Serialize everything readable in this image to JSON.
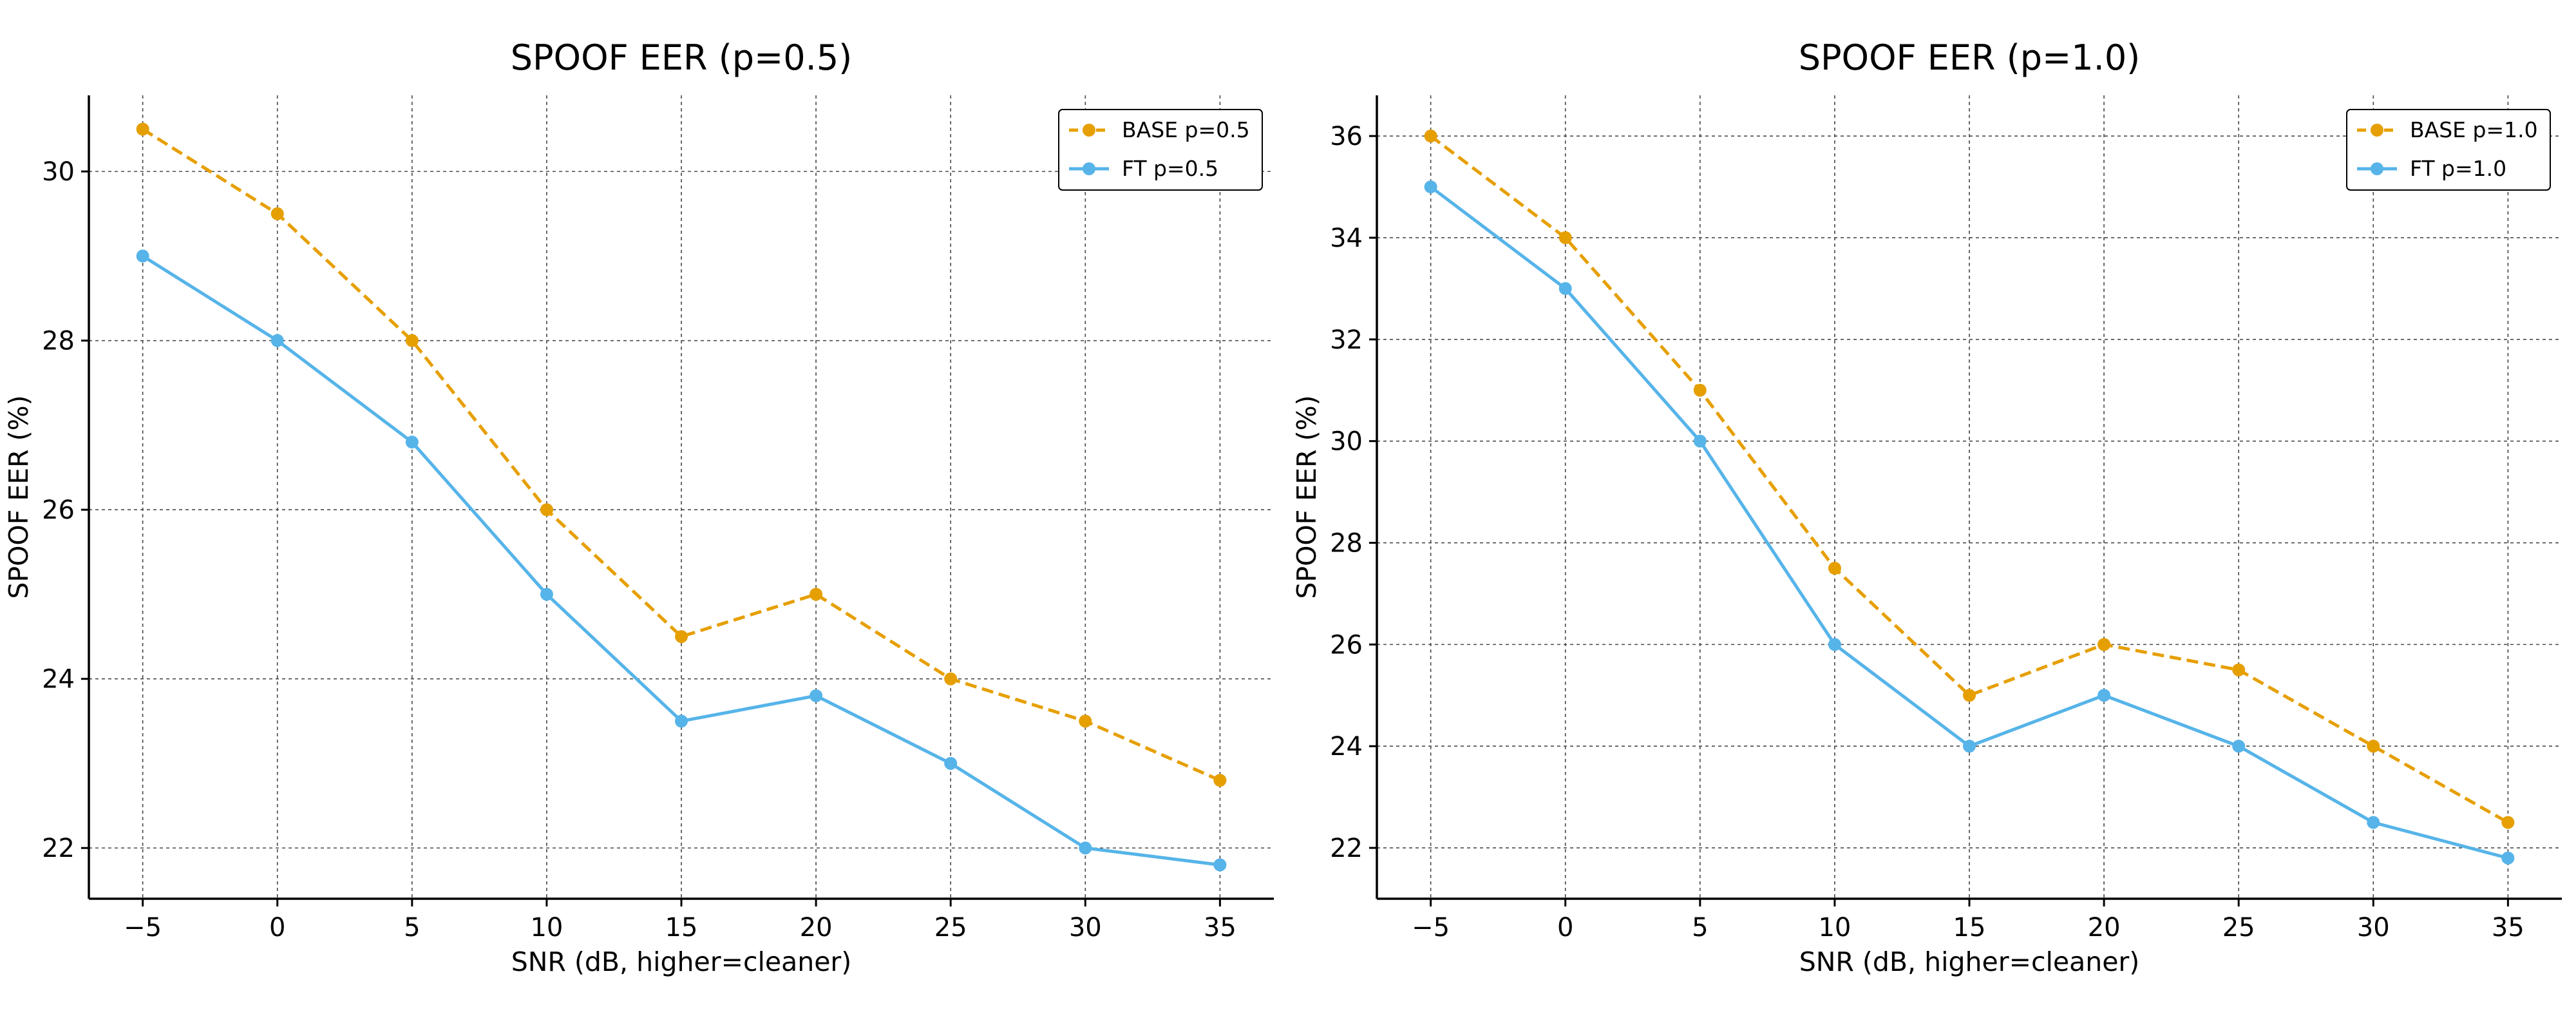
{
  "chart_data": [
    {
      "type": "line",
      "title": "SPOOF EER (p=0.5)",
      "xlabel": "SNR (dB, higher=cleaner)",
      "ylabel": "SPOOF EER (%)",
      "x": [
        -5,
        0,
        5,
        10,
        15,
        20,
        25,
        30,
        35
      ],
      "x_tick_labels": [
        "−5",
        "0",
        "5",
        "10",
        "15",
        "20",
        "25",
        "30",
        "35"
      ],
      "xlim": [
        -7,
        37
      ],
      "ylim": [
        21.4,
        30.9
      ],
      "y_ticks": [
        22,
        24,
        26,
        28,
        30
      ],
      "grid": true,
      "legend_position": "top-right",
      "series": [
        {
          "name": "BASE p=0.5",
          "color": "#E69F00",
          "style": "dashed",
          "values": [
            30.5,
            29.5,
            28.0,
            26.0,
            24.5,
            25.0,
            24.0,
            23.5,
            22.8
          ]
        },
        {
          "name": "FT p=0.5",
          "color": "#56B4E9",
          "style": "solid",
          "values": [
            29.0,
            28.0,
            26.8,
            25.0,
            23.5,
            23.8,
            23.0,
            22.0,
            21.8
          ]
        }
      ]
    },
    {
      "type": "line",
      "title": "SPOOF EER (p=1.0)",
      "xlabel": "SNR (dB, higher=cleaner)",
      "ylabel": "SPOOF EER (%)",
      "x": [
        -5,
        0,
        5,
        10,
        15,
        20,
        25,
        30,
        35
      ],
      "x_tick_labels": [
        "−5",
        "0",
        "5",
        "10",
        "15",
        "20",
        "25",
        "30",
        "35"
      ],
      "xlim": [
        -7,
        37
      ],
      "ylim": [
        21.0,
        36.8
      ],
      "y_ticks": [
        22,
        24,
        26,
        28,
        30,
        32,
        34,
        36
      ],
      "grid": true,
      "legend_position": "top-right",
      "series": [
        {
          "name": "BASE p=1.0",
          "color": "#E69F00",
          "style": "dashed",
          "values": [
            36.0,
            34.0,
            31.0,
            27.5,
            25.0,
            26.0,
            25.5,
            24.0,
            22.5
          ]
        },
        {
          "name": "FT p=1.0",
          "color": "#56B4E9",
          "style": "solid",
          "values": [
            35.0,
            33.0,
            30.0,
            26.0,
            24.0,
            25.0,
            24.0,
            22.5,
            21.8
          ]
        }
      ]
    }
  ]
}
